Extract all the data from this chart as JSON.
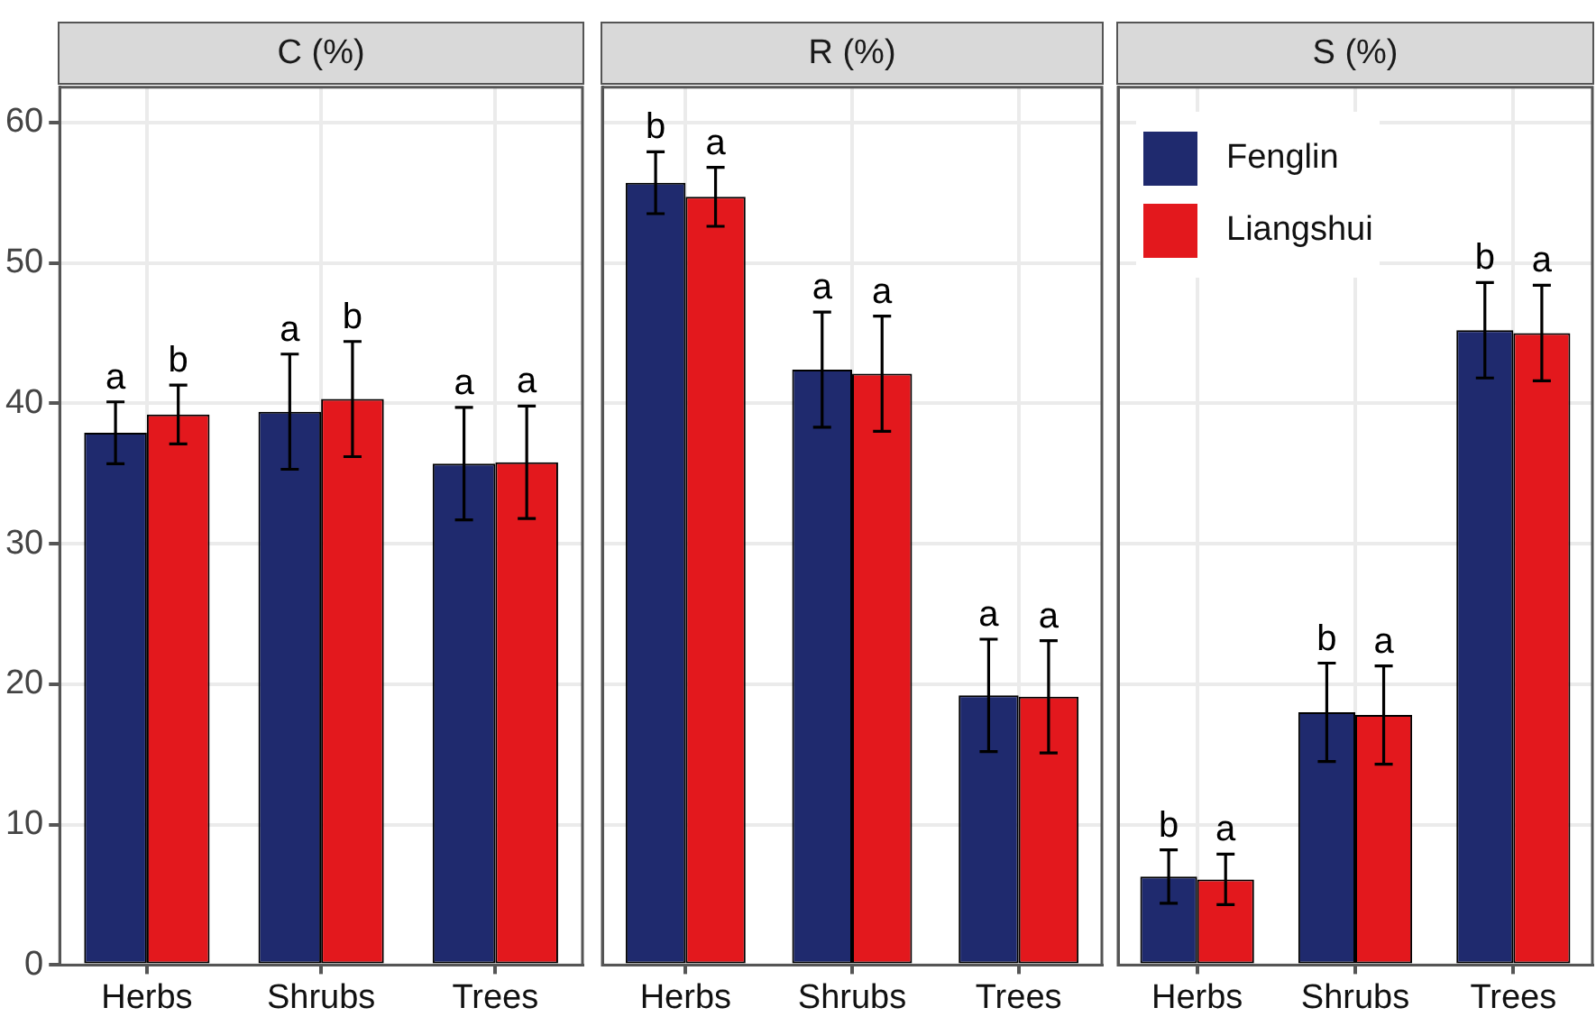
{
  "chart_data": [
    {
      "type": "bar",
      "title": "C (%)",
      "categories": [
        "Herbs",
        "Shrubs",
        "Trees"
      ],
      "ylim": [
        0,
        62.5
      ],
      "yticks": [
        0,
        10,
        20,
        30,
        40,
        50,
        60
      ],
      "grid": true,
      "legend": false,
      "series": [
        {
          "color": "#1f2a6e",
          "values": [
            37.9,
            39.4,
            35.7
          ],
          "errors": [
            2.2,
            4.1,
            4.0
          ],
          "value_labels": [
            "a",
            "a",
            "a"
          ]
        },
        {
          "color": "#e3181d",
          "values": [
            39.2,
            40.3,
            35.8
          ],
          "errors": [
            2.1,
            4.1,
            4.0
          ],
          "value_labels": [
            "b",
            "b",
            "a"
          ]
        }
      ]
    },
    {
      "type": "bar",
      "title": "R (%)",
      "categories": [
        "Herbs",
        "Shrubs",
        "Trees"
      ],
      "ylim": [
        0,
        62.5
      ],
      "yticks": [
        0,
        10,
        20,
        30,
        40,
        50,
        60
      ],
      "grid": true,
      "legend": false,
      "tick_labels": "x",
      "series": [
        {
          "color": "#1f2a6e",
          "values": [
            55.7,
            42.4,
            19.2
          ],
          "errors": [
            2.2,
            4.1,
            4.0
          ],
          "value_labels": [
            "b",
            "a",
            "a"
          ]
        },
        {
          "color": "#e3181d",
          "values": [
            54.7,
            42.1,
            19.1
          ],
          "errors": [
            2.1,
            4.1,
            4.0
          ],
          "value_labels": [
            "a",
            "a",
            "a"
          ]
        }
      ]
    },
    {
      "type": "bar",
      "title": "S (%)",
      "categories": [
        "Herbs",
        "Shrubs",
        "Trees"
      ],
      "ylim": [
        0,
        62.5
      ],
      "yticks": [
        0,
        10,
        20,
        30,
        40,
        50,
        60
      ],
      "grid": true,
      "legend": "top left",
      "tick_labels": "x",
      "series": [
        {
          "name": "Fenglin",
          "color": "#1f2a6e",
          "values": [
            6.3,
            18.0,
            45.2
          ],
          "errors": [
            1.9,
            3.5,
            3.4
          ],
          "value_labels": [
            "b",
            "b",
            "b"
          ]
        },
        {
          "name": "Liangshui",
          "color": "#e3181d",
          "values": [
            6.1,
            17.8,
            45.0
          ],
          "errors": [
            1.8,
            3.5,
            3.4
          ],
          "value_labels": [
            "a",
            "a",
            "a"
          ]
        }
      ]
    }
  ]
}
